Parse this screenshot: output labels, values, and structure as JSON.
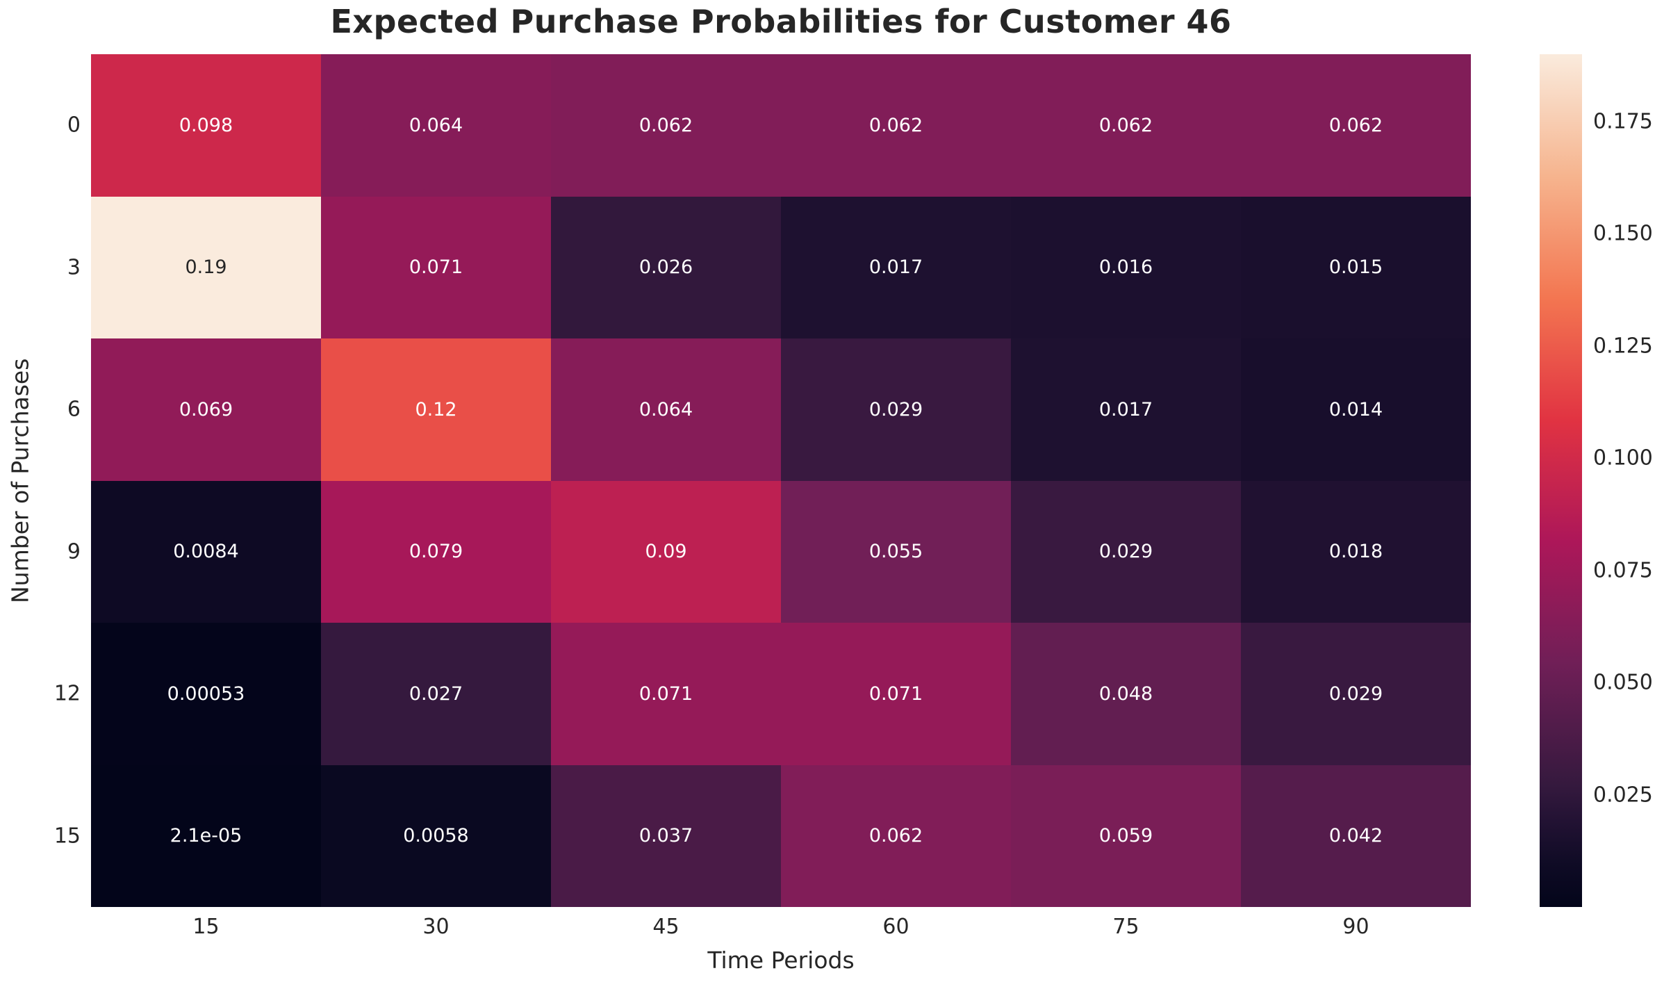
{
  "chart_data": {
    "type": "heatmap",
    "title": "Expected Purchase Probabilities for Customer 46",
    "xlabel": "Time Periods",
    "ylabel": "Number of Purchases",
    "x_tick_labels": [
      "15",
      "30",
      "45",
      "60",
      "75",
      "90"
    ],
    "y_tick_labels": [
      "0",
      "3",
      "6",
      "9",
      "12",
      "15"
    ],
    "values": [
      [
        0.098,
        0.064,
        0.062,
        0.062,
        0.062,
        0.062
      ],
      [
        0.19,
        0.071,
        0.026,
        0.017,
        0.016,
        0.015
      ],
      [
        0.069,
        0.12,
        0.064,
        0.029,
        0.017,
        0.014
      ],
      [
        0.0084,
        0.079,
        0.09,
        0.055,
        0.029,
        0.018
      ],
      [
        0.00053,
        0.027,
        0.071,
        0.071,
        0.048,
        0.029
      ],
      [
        2.1e-05,
        0.0058,
        0.037,
        0.062,
        0.059,
        0.042
      ]
    ],
    "cell_labels": [
      [
        "0.098",
        "0.064",
        "0.062",
        "0.062",
        "0.062",
        "0.062"
      ],
      [
        "0.19",
        "0.071",
        "0.026",
        "0.017",
        "0.016",
        "0.015"
      ],
      [
        "0.069",
        "0.12",
        "0.064",
        "0.029",
        "0.017",
        "0.014"
      ],
      [
        "0.0084",
        "0.079",
        "0.09",
        "0.055",
        "0.029",
        "0.018"
      ],
      [
        "0.00053",
        "0.027",
        "0.071",
        "0.071",
        "0.048",
        "0.029"
      ],
      [
        "2.1e-05",
        "0.0058",
        "0.037",
        "0.062",
        "0.059",
        "0.042"
      ]
    ],
    "vmin": 2.1e-05,
    "vmax": 0.19,
    "colormap": "rocket",
    "colorbar_position": "right",
    "colorbar_tick_values": [
      0.175,
      0.15,
      0.125,
      0.1,
      0.075,
      0.05,
      0.025
    ],
    "colorbar_tick_labels": [
      "0.175",
      "0.150",
      "0.125",
      "0.100",
      "0.075",
      "0.050",
      "0.025"
    ],
    "grid": false
  },
  "colors": {
    "background": "#FFFFFF",
    "axis_text": "#262626",
    "title_text": "#262626",
    "annotation_light": "#FFFFFF",
    "annotation_dark": "#262626",
    "rocket_stops": [
      {
        "t": 0.0,
        "hex": "#03051A"
      },
      {
        "t": 0.05,
        "hex": "#0F0B25"
      },
      {
        "t": 0.1,
        "hex": "#221233"
      },
      {
        "t": 0.143,
        "hex": "#35193E"
      },
      {
        "t": 0.286,
        "hex": "#701F57"
      },
      {
        "t": 0.429,
        "hex": "#AD1759"
      },
      {
        "t": 0.571,
        "hex": "#E13342"
      },
      {
        "t": 0.714,
        "hex": "#F37651"
      },
      {
        "t": 0.857,
        "hex": "#F6B48E"
      },
      {
        "t": 1.0,
        "hex": "#FAEBDD"
      }
    ]
  }
}
